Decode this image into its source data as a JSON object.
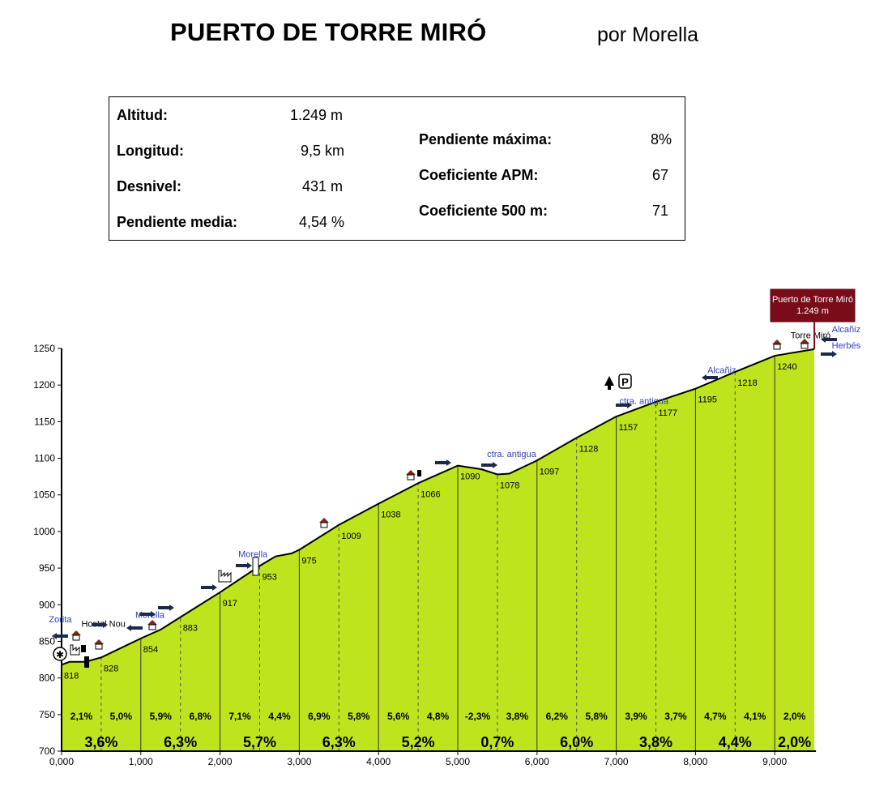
{
  "header": {
    "title": "PUERTO DE TORRE MIRÓ",
    "subtitle": "por Morella"
  },
  "stats": {
    "left": [
      {
        "label": "Altitud:",
        "value": "1.249 m"
      },
      {
        "label": "Longitud:",
        "value": "9,5 km"
      },
      {
        "label": "Desnivel:",
        "value": "431 m"
      },
      {
        "label": "Pendiente media:",
        "value": "4,54 %"
      }
    ],
    "right": [
      {
        "label": "Pendiente máxima:",
        "value": "8%"
      },
      {
        "label": "Coeficiente APM:",
        "value": "67"
      },
      {
        "label": "Coeficiente 500 m:",
        "value": "71"
      }
    ]
  },
  "summit_box": {
    "line1": "Puerto de Torre Miró",
    "line2": "1.249 m"
  },
  "colors": {
    "fill": "#bde41c",
    "summit_box": "#7a0c1a",
    "road_label": "#3040c0",
    "arrow": "#1a2a48"
  },
  "chart_data": {
    "type": "area",
    "xlabel": "",
    "ylabel": "",
    "xlim": [
      0,
      9.5
    ],
    "ylim": [
      700,
      1250
    ],
    "x_ticks": [
      0,
      1,
      2,
      3,
      4,
      5,
      6,
      7,
      8,
      9
    ],
    "x_tick_labels": [
      "0,000",
      "1,000",
      "2,000",
      "3,000",
      "4,000",
      "5,000",
      "6,000",
      "7,000",
      "8,000",
      "9,000"
    ],
    "y_ticks": [
      700,
      750,
      800,
      850,
      900,
      950,
      1000,
      1050,
      1100,
      1150,
      1200,
      1250
    ],
    "profile": [
      {
        "x": 0,
        "y": 818
      },
      {
        "x": 0.1,
        "y": 822
      },
      {
        "x": 0.3,
        "y": 822
      },
      {
        "x": 0.5,
        "y": 828
      },
      {
        "x": 1.0,
        "y": 854
      },
      {
        "x": 1.25,
        "y": 866
      },
      {
        "x": 1.5,
        "y": 883
      },
      {
        "x": 2.0,
        "y": 917
      },
      {
        "x": 2.5,
        "y": 953
      },
      {
        "x": 2.7,
        "y": 966
      },
      {
        "x": 2.9,
        "y": 970
      },
      {
        "x": 3.0,
        "y": 975
      },
      {
        "x": 3.5,
        "y": 1009
      },
      {
        "x": 4.0,
        "y": 1038
      },
      {
        "x": 4.5,
        "y": 1066
      },
      {
        "x": 5.0,
        "y": 1090
      },
      {
        "x": 5.3,
        "y": 1085
      },
      {
        "x": 5.5,
        "y": 1078
      },
      {
        "x": 5.65,
        "y": 1079
      },
      {
        "x": 6.0,
        "y": 1097
      },
      {
        "x": 6.5,
        "y": 1128
      },
      {
        "x": 7.0,
        "y": 1157
      },
      {
        "x": 7.5,
        "y": 1177
      },
      {
        "x": 8.0,
        "y": 1195
      },
      {
        "x": 8.5,
        "y": 1218
      },
      {
        "x": 9.0,
        "y": 1240
      },
      {
        "x": 9.5,
        "y": 1249
      }
    ],
    "point_labels": [
      {
        "x": 0,
        "y": 818,
        "label": "818"
      },
      {
        "x": 0.5,
        "y": 828,
        "label": "828"
      },
      {
        "x": 1.0,
        "y": 854,
        "label": "854"
      },
      {
        "x": 1.5,
        "y": 883,
        "label": "883"
      },
      {
        "x": 2.0,
        "y": 917,
        "label": "917"
      },
      {
        "x": 2.5,
        "y": 953,
        "label": "953"
      },
      {
        "x": 3.0,
        "y": 975,
        "label": "975"
      },
      {
        "x": 3.5,
        "y": 1009,
        "label": "1009"
      },
      {
        "x": 4.0,
        "y": 1038,
        "label": "1038"
      },
      {
        "x": 4.5,
        "y": 1066,
        "label": "1066"
      },
      {
        "x": 5.0,
        "y": 1090,
        "label": "1090"
      },
      {
        "x": 5.5,
        "y": 1078,
        "label": "1078"
      },
      {
        "x": 6.0,
        "y": 1097,
        "label": "1097"
      },
      {
        "x": 6.5,
        "y": 1128,
        "label": "1128"
      },
      {
        "x": 7.0,
        "y": 1157,
        "label": "1157"
      },
      {
        "x": 7.5,
        "y": 1177,
        "label": "1177"
      },
      {
        "x": 8.0,
        "y": 1195,
        "label": "1195"
      },
      {
        "x": 8.5,
        "y": 1218,
        "label": "1218"
      },
      {
        "x": 9.0,
        "y": 1240,
        "label": "1240"
      }
    ],
    "half_km_gradients": [
      "2,1%",
      "5,0%",
      "5,9%",
      "6,8%",
      "7,1%",
      "4,4%",
      "6,9%",
      "5,8%",
      "5,6%",
      "4,8%",
      "-2,3%",
      "3,8%",
      "6,2%",
      "5,8%",
      "3,9%",
      "3,7%",
      "4,7%",
      "4,1%",
      "2,0%"
    ],
    "km_gradients": [
      "3,6%",
      "6,3%",
      "5,7%",
      "6,3%",
      "5,2%",
      "0,7%",
      "6,0%",
      "3,8%",
      "4,4%",
      "2,0%"
    ],
    "place_labels": [
      {
        "x": 0.25,
        "y": 870,
        "text": "Hostal Nou"
      },
      {
        "x": 9.2,
        "y": 1264,
        "text": "Torre Miró"
      }
    ],
    "road_labels": [
      {
        "x": -0.16,
        "y": 876,
        "text": "Zorita"
      },
      {
        "x": 0.93,
        "y": 882,
        "text": "Morella"
      },
      {
        "x": 2.23,
        "y": 965,
        "text": "Morella"
      },
      {
        "x": 5.37,
        "y": 1102,
        "text": "ctra. antigua"
      },
      {
        "x": 7.04,
        "y": 1174,
        "text": "ctra. antigua"
      },
      {
        "x": 8.15,
        "y": 1216,
        "text": "Alcañiz"
      },
      {
        "x": 9.72,
        "y": 1272,
        "text": "Alcañiz"
      },
      {
        "x": 9.72,
        "y": 1250,
        "text": "Herbés"
      }
    ]
  }
}
